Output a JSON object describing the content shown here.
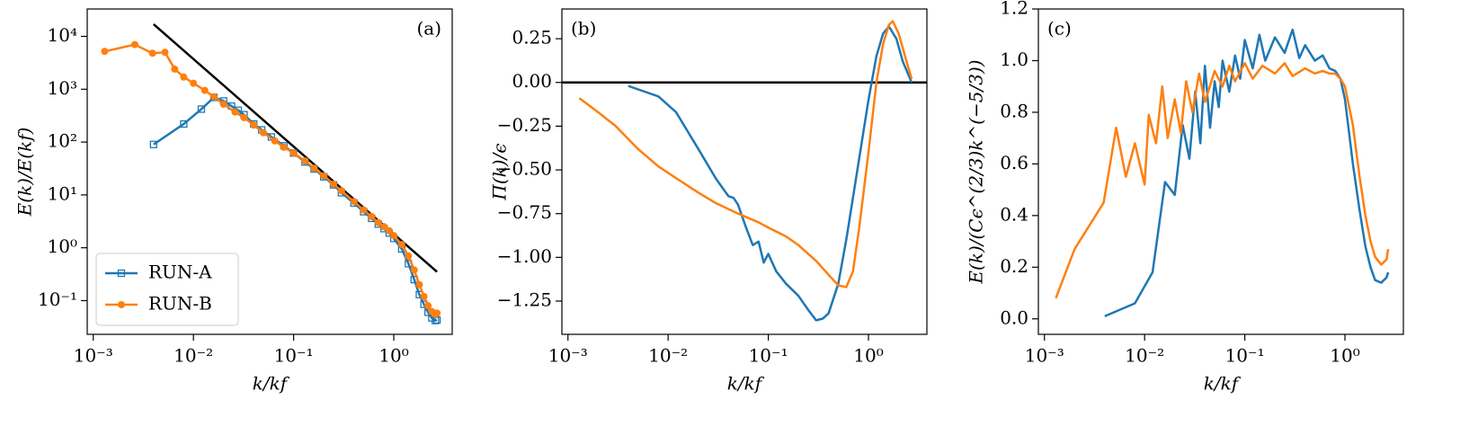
{
  "chart_data": [
    {
      "type": "line",
      "title": "(a)",
      "title_position": "upper right",
      "xlabel": "k/kf",
      "ylabel": "E(k)/E(kf)",
      "xscale": "log",
      "yscale": "log",
      "xlim": [
        0.00087,
        3.83
      ],
      "ylim": [
        0.023,
        33000
      ],
      "xticks": [
        {
          "value": 0.001,
          "label": "10⁻³"
        },
        {
          "value": 0.01,
          "label": "10⁻²"
        },
        {
          "value": 0.1,
          "label": "10⁻¹"
        },
        {
          "value": 1,
          "label": "10⁰"
        }
      ],
      "yticks": [
        {
          "value": 0.1,
          "label": "10⁻¹"
        },
        {
          "value": 1,
          "label": "10⁰"
        },
        {
          "value": 10,
          "label": "10¹"
        },
        {
          "value": 100,
          "label": "10²"
        },
        {
          "value": 1000,
          "label": "10³"
        },
        {
          "value": 10000,
          "label": "10⁴"
        }
      ],
      "legend": "lower left",
      "reference_line": {
        "x": [
          0.004,
          2.7
        ],
        "y": [
          17000,
          0.35
        ],
        "color": "#000000"
      },
      "series": [
        {
          "name": "RUN-A",
          "color": "#1f77b4",
          "marker": "square",
          "x": [
            0.004,
            0.008,
            0.012,
            0.016,
            0.02,
            0.024,
            0.028,
            0.032,
            0.04,
            0.048,
            0.06,
            0.08,
            0.1,
            0.13,
            0.16,
            0.2,
            0.25,
            0.3,
            0.4,
            0.5,
            0.6,
            0.7,
            0.8,
            0.9,
            1.0,
            1.2,
            1.4,
            1.6,
            1.8,
            2.0,
            2.2,
            2.4,
            2.6,
            2.7
          ],
          "values": [
            90,
            220,
            420,
            700,
            600,
            480,
            400,
            330,
            220,
            170,
            125,
            85,
            62,
            42,
            31,
            22,
            15.5,
            11,
            7,
            4.8,
            3.6,
            2.8,
            2.3,
            1.9,
            1.5,
            0.95,
            0.5,
            0.25,
            0.13,
            0.085,
            0.06,
            0.047,
            0.042,
            0.043
          ]
        },
        {
          "name": "RUN-B",
          "color": "#ff7f0e",
          "marker": "circle",
          "x": [
            0.0013,
            0.0026,
            0.0039,
            0.0052,
            0.0065,
            0.008,
            0.01,
            0.013,
            0.016,
            0.02,
            0.026,
            0.032,
            0.04,
            0.05,
            0.065,
            0.08,
            0.1,
            0.13,
            0.16,
            0.2,
            0.25,
            0.3,
            0.4,
            0.5,
            0.6,
            0.7,
            0.8,
            0.9,
            1.0,
            1.2,
            1.4,
            1.6,
            1.8,
            2.0,
            2.2,
            2.4,
            2.6,
            2.7
          ],
          "values": [
            5200,
            7000,
            4800,
            5000,
            2400,
            1700,
            1300,
            950,
            720,
            520,
            370,
            290,
            210,
            150,
            105,
            80,
            62,
            44,
            32,
            23,
            16,
            12,
            7.5,
            5.2,
            3.9,
            3.0,
            2.5,
            2.1,
            1.7,
            1.15,
            0.7,
            0.38,
            0.2,
            0.12,
            0.08,
            0.062,
            0.055,
            0.058
          ]
        }
      ]
    },
    {
      "type": "line",
      "title": "(b)",
      "title_position": "upper left",
      "xlabel": "k/kf",
      "ylabel": "Π(k)/ϵ",
      "xscale": "log",
      "yscale": "linear",
      "xlim": [
        0.00087,
        3.83
      ],
      "ylim": [
        -1.44,
        0.42
      ],
      "xticks": [
        {
          "value": 0.001,
          "label": "10⁻³"
        },
        {
          "value": 0.01,
          "label": "10⁻²"
        },
        {
          "value": 0.1,
          "label": "10⁻¹"
        },
        {
          "value": 1,
          "label": "10⁰"
        }
      ],
      "yticks": [
        {
          "value": -1.25,
          "label": "−1.25"
        },
        {
          "value": -1,
          "label": "−1.00"
        },
        {
          "value": -0.75,
          "label": "−0.75"
        },
        {
          "value": -0.5,
          "label": "−0.50"
        },
        {
          "value": -0.25,
          "label": "−0.25"
        },
        {
          "value": 0,
          "label": "0.00"
        },
        {
          "value": 0.25,
          "label": "0.25"
        }
      ],
      "hline": 0,
      "series": [
        {
          "name": "RUN-A",
          "color": "#1f77b4",
          "x": [
            0.004,
            0.008,
            0.012,
            0.02,
            0.03,
            0.04,
            0.045,
            0.05,
            0.06,
            0.07,
            0.08,
            0.09,
            0.1,
            0.12,
            0.15,
            0.2,
            0.25,
            0.3,
            0.35,
            0.4,
            0.5,
            0.6,
            0.8,
            1.0,
            1.2,
            1.4,
            1.6,
            1.9,
            2.2,
            2.7
          ],
          "values": [
            -0.02,
            -0.08,
            -0.17,
            -0.38,
            -0.55,
            -0.65,
            -0.66,
            -0.7,
            -0.83,
            -0.93,
            -0.91,
            -1.03,
            -0.98,
            -1.08,
            -1.15,
            -1.22,
            -1.3,
            -1.36,
            -1.35,
            -1.32,
            -1.15,
            -0.9,
            -0.45,
            -0.1,
            0.15,
            0.28,
            0.32,
            0.25,
            0.12,
            0.0
          ]
        },
        {
          "name": "RUN-B",
          "color": "#ff7f0e",
          "x": [
            0.0013,
            0.002,
            0.003,
            0.005,
            0.008,
            0.013,
            0.02,
            0.03,
            0.05,
            0.08,
            0.1,
            0.15,
            0.2,
            0.3,
            0.4,
            0.5,
            0.6,
            0.7,
            0.8,
            1.0,
            1.2,
            1.4,
            1.6,
            1.75,
            2.0,
            2.4,
            2.7
          ],
          "values": [
            -0.09,
            -0.17,
            -0.25,
            -0.38,
            -0.48,
            -0.56,
            -0.63,
            -0.69,
            -0.75,
            -0.8,
            -0.83,
            -0.88,
            -0.93,
            -1.02,
            -1.1,
            -1.16,
            -1.17,
            -1.08,
            -0.85,
            -0.4,
            0.0,
            0.22,
            0.33,
            0.35,
            0.28,
            0.12,
            0.02
          ]
        }
      ]
    },
    {
      "type": "line",
      "title": "(c)",
      "title_position": "upper left",
      "xlabel": "k/kf",
      "ylabel": "E(k)/(Cϵ^(2/3)k^(−5/3))",
      "xscale": "log",
      "yscale": "linear",
      "xlim": [
        0.00087,
        3.83
      ],
      "ylim": [
        -0.06,
        1.2
      ],
      "xticks": [
        {
          "value": 0.001,
          "label": "10⁻³"
        },
        {
          "value": 0.01,
          "label": "10⁻²"
        },
        {
          "value": 0.1,
          "label": "10⁻¹"
        },
        {
          "value": 1,
          "label": "10⁰"
        }
      ],
      "yticks": [
        {
          "value": 0,
          "label": "0.0"
        },
        0.2,
        0.4,
        0.6,
        0.8,
        {
          "value": 1,
          "label": "1.0"
        },
        1.2
      ],
      "series": [
        {
          "name": "RUN-A",
          "color": "#1f77b4",
          "x": [
            0.004,
            0.008,
            0.012,
            0.016,
            0.02,
            0.024,
            0.028,
            0.032,
            0.036,
            0.04,
            0.045,
            0.05,
            0.055,
            0.06,
            0.07,
            0.08,
            0.09,
            0.1,
            0.12,
            0.14,
            0.16,
            0.2,
            0.25,
            0.3,
            0.35,
            0.4,
            0.5,
            0.6,
            0.7,
            0.8,
            0.9,
            1.0,
            1.2,
            1.4,
            1.6,
            1.8,
            2.0,
            2.3,
            2.6,
            2.7
          ],
          "values": [
            0.01,
            0.06,
            0.18,
            0.53,
            0.48,
            0.75,
            0.62,
            0.88,
            0.68,
            0.98,
            0.74,
            0.92,
            0.82,
            1.0,
            0.88,
            1.02,
            0.93,
            1.08,
            0.97,
            1.1,
            1.0,
            1.09,
            1.03,
            1.12,
            1.01,
            1.06,
            1.0,
            1.02,
            0.97,
            0.96,
            0.93,
            0.85,
            0.6,
            0.42,
            0.28,
            0.2,
            0.15,
            0.14,
            0.16,
            0.18
          ]
        },
        {
          "name": "RUN-B",
          "color": "#ff7f0e",
          "x": [
            0.0013,
            0.002,
            0.0039,
            0.0052,
            0.0065,
            0.008,
            0.01,
            0.011,
            0.013,
            0.015,
            0.017,
            0.02,
            0.023,
            0.026,
            0.03,
            0.035,
            0.04,
            0.05,
            0.06,
            0.07,
            0.08,
            0.1,
            0.12,
            0.15,
            0.2,
            0.25,
            0.3,
            0.4,
            0.5,
            0.6,
            0.7,
            0.8,
            0.9,
            1.0,
            1.2,
            1.4,
            1.6,
            1.8,
            2.0,
            2.3,
            2.6,
            2.7
          ],
          "values": [
            0.08,
            0.27,
            0.45,
            0.74,
            0.55,
            0.68,
            0.52,
            0.79,
            0.68,
            0.9,
            0.7,
            0.85,
            0.72,
            0.92,
            0.8,
            0.95,
            0.84,
            0.96,
            0.9,
            0.98,
            0.92,
            0.99,
            0.93,
            0.98,
            0.95,
            0.99,
            0.94,
            0.97,
            0.95,
            0.96,
            0.95,
            0.95,
            0.93,
            0.9,
            0.75,
            0.55,
            0.4,
            0.3,
            0.24,
            0.21,
            0.23,
            0.27
          ]
        }
      ]
    }
  ]
}
